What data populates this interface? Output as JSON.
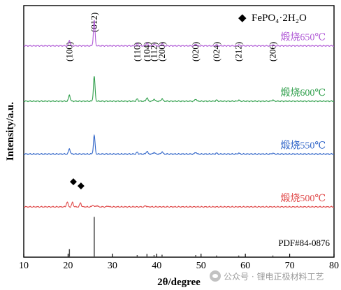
{
  "chart_data": {
    "type": "line",
    "xlabel": "2θ/degree",
    "ylabel": "Intensity/a.u.",
    "xlim": [
      10,
      80
    ],
    "xticks": [
      10,
      20,
      30,
      40,
      50,
      60,
      70,
      80
    ],
    "grid": false,
    "legend": {
      "position": "top-right",
      "marker": "◆",
      "label": "FePO₄·2H₂O"
    },
    "peak_labels": [
      {
        "x": 20.3,
        "label": "(100)"
      },
      {
        "x": 25.9,
        "label": "(012)"
      },
      {
        "x": 35.6,
        "label": "(110)"
      },
      {
        "x": 37.8,
        "label": "(104)"
      },
      {
        "x": 39.4,
        "label": "(112)"
      },
      {
        "x": 41.2,
        "label": "(200)"
      },
      {
        "x": 48.8,
        "label": "(020)"
      },
      {
        "x": 53.5,
        "label": "(024)"
      },
      {
        "x": 58.5,
        "label": "(212)"
      },
      {
        "x": 66.2,
        "label": "(206)"
      }
    ],
    "series": [
      {
        "name": "煅烧650℃",
        "color": "#b05ad6",
        "baseline": 0.84,
        "peaks": [
          [
            20.3,
            0.6
          ],
          [
            25.9,
            2.9
          ],
          [
            35.6,
            0.25
          ],
          [
            37.8,
            0.35
          ],
          [
            39.4,
            0.22
          ],
          [
            41.2,
            0.28
          ],
          [
            48.8,
            0.22
          ],
          [
            53.5,
            0.12
          ],
          [
            58.5,
            0.12
          ],
          [
            66.2,
            0.12
          ]
        ]
      },
      {
        "name": "煅烧600℃",
        "color": "#2e9e4a",
        "baseline": 0.62,
        "peaks": [
          [
            20.3,
            0.7
          ],
          [
            25.9,
            2.8
          ],
          [
            35.6,
            0.25
          ],
          [
            37.8,
            0.4
          ],
          [
            39.4,
            0.25
          ],
          [
            41.2,
            0.3
          ],
          [
            48.8,
            0.25
          ],
          [
            53.5,
            0.12
          ],
          [
            58.5,
            0.12
          ],
          [
            66.2,
            0.14
          ]
        ]
      },
      {
        "name": "煅烧550℃",
        "color": "#2f64c8",
        "baseline": 0.41,
        "peaks": [
          [
            20.3,
            0.6
          ],
          [
            25.9,
            2.1
          ],
          [
            35.6,
            0.2
          ],
          [
            37.8,
            0.32
          ],
          [
            39.4,
            0.2
          ],
          [
            41.2,
            0.26
          ],
          [
            48.8,
            0.2
          ],
          [
            53.5,
            0.1
          ],
          [
            58.5,
            0.1
          ],
          [
            66.2,
            0.1
          ]
        ]
      },
      {
        "name": "煅烧500℃",
        "color": "#e04a4a",
        "baseline": 0.2,
        "peaks": [
          [
            19.8,
            0.55
          ],
          [
            21.0,
            0.5
          ],
          [
            22.8,
            0.45
          ],
          [
            25.6,
            0.2
          ],
          [
            26.5,
            0.15
          ],
          [
            29.0,
            0.1
          ],
          [
            37.5,
            0.12
          ]
        ]
      }
    ],
    "series_markers": [
      {
        "series": "煅烧500℃",
        "x": 21.2,
        "symbol": "◆"
      },
      {
        "series": "煅烧500℃",
        "x": 22.9,
        "symbol": "◆"
      }
    ],
    "reference": {
      "name": "PDF#84-0876",
      "color": "#444444",
      "lines": [
        [
          20.3,
          0.2
        ],
        [
          25.9,
          1.0
        ],
        [
          35.6,
          0.05
        ],
        [
          37.8,
          0.08
        ],
        [
          39.4,
          0.05
        ],
        [
          41.2,
          0.06
        ],
        [
          48.8,
          0.05
        ],
        [
          53.5,
          0.04
        ],
        [
          58.5,
          0.04
        ],
        [
          66.2,
          0.04
        ]
      ]
    }
  },
  "watermark": {
    "text": "公众号 · 锂电正极材料工艺"
  }
}
